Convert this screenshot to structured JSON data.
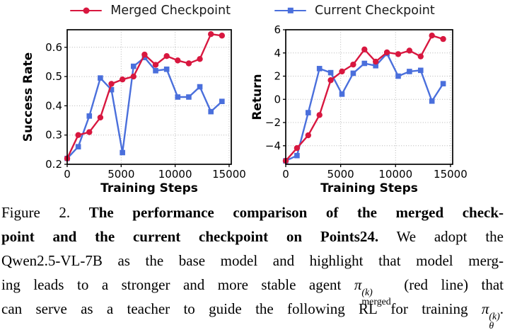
{
  "legend": {
    "items": [
      {
        "label": "Merged Checkpoint",
        "color": "#d8173f",
        "marker": "circle"
      },
      {
        "label": "Current Checkpoint",
        "color": "#4a6fdc",
        "marker": "square"
      }
    ]
  },
  "chart_data": [
    {
      "type": "line",
      "title": "",
      "xlabel": "Training Steps",
      "ylabel": "Success Rate",
      "xlim": [
        0,
        15200
      ],
      "ylim": [
        0.2,
        0.66
      ],
      "xticks": [
        0,
        5000,
        10000,
        15000
      ],
      "xtick_labels": [
        "0",
        "5000",
        "10000",
        "15000"
      ],
      "yticks": [
        0.2,
        0.3,
        0.4,
        0.5,
        0.6
      ],
      "ytick_labels": [
        "0.2",
        "0.3",
        "0.4",
        "0.5",
        "0.6"
      ],
      "grid": true,
      "legend_position": "top-outside",
      "x": [
        0,
        1024,
        2048,
        3072,
        4096,
        5120,
        6144,
        7168,
        8192,
        9216,
        10240,
        11264,
        12288,
        13312,
        14336
      ],
      "series": [
        {
          "name": "Merged Checkpoint",
          "color": "#d8173f",
          "marker": "circle",
          "values": [
            0.22,
            0.3,
            0.31,
            0.36,
            0.475,
            0.49,
            0.5,
            0.575,
            0.54,
            0.57,
            0.555,
            0.545,
            0.56,
            0.645,
            0.64
          ]
        },
        {
          "name": "Current Checkpoint",
          "color": "#4a6fdc",
          "marker": "square",
          "values": [
            0.22,
            0.26,
            0.365,
            0.495,
            0.455,
            0.24,
            0.535,
            0.565,
            0.52,
            0.525,
            0.43,
            0.43,
            0.465,
            0.38,
            0.415
          ]
        }
      ]
    },
    {
      "type": "line",
      "title": "",
      "xlabel": "Training Steps",
      "ylabel": "Return",
      "xlim": [
        0,
        15200
      ],
      "ylim": [
        -5.6,
        6
      ],
      "xticks": [
        0,
        5000,
        10000,
        15000
      ],
      "xtick_labels": [
        "0",
        "5000",
        "10000",
        "15000"
      ],
      "yticks": [
        -4,
        -2,
        0,
        2,
        4,
        6
      ],
      "ytick_labels": [
        "−4",
        "−2",
        "0",
        "2",
        "4",
        "6"
      ],
      "grid": true,
      "legend_position": "top-outside",
      "x": [
        0,
        1024,
        2048,
        3072,
        4096,
        5120,
        6144,
        7168,
        8192,
        9216,
        10240,
        11264,
        12288,
        13312,
        14336
      ],
      "series": [
        {
          "name": "Merged Checkpoint",
          "color": "#d8173f",
          "marker": "circle",
          "values": [
            -5.3,
            -4.2,
            -3.1,
            -1.35,
            1.65,
            2.4,
            3.0,
            4.3,
            3.25,
            4.05,
            3.9,
            4.2,
            3.7,
            5.5,
            5.2
          ]
        },
        {
          "name": "Current Checkpoint",
          "color": "#4a6fdc",
          "marker": "square",
          "values": [
            -5.3,
            -4.85,
            -1.15,
            2.65,
            2.3,
            0.45,
            2.25,
            3.1,
            2.9,
            3.95,
            2.0,
            2.4,
            2.5,
            -0.15,
            1.35
          ]
        }
      ]
    }
  ],
  "caption": {
    "lines": [
      {
        "prefix": "Figure 2.",
        "bold": "The performance comparison of the merged check-"
      },
      {
        "bold": "point and the current checkpoint on Points24.",
        "rest": "We adopt the"
      },
      {
        "text": "Qwen2.5-VL-7B as the base model and highlight that model merg-"
      },
      {
        "pre": "ing leads to a stronger and more stable agent",
        "post": "(red line) that"
      },
      {
        "pre": "can serve as a teacher to guide the following RL for training",
        "post": "."
      }
    ],
    "math1": {
      "base": "π",
      "sup": "(k)",
      "sub": "merged"
    },
    "math2": {
      "base": "π",
      "sup": "(k)",
      "sub": "θ"
    }
  }
}
